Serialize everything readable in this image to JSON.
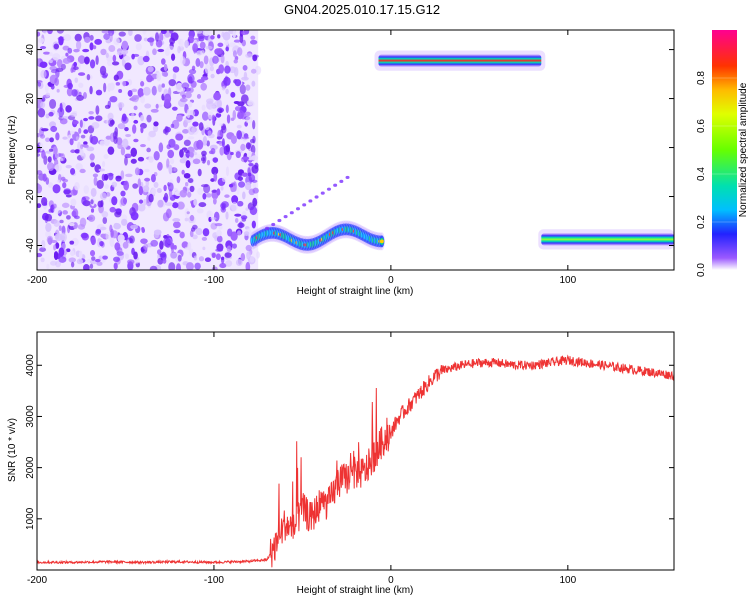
{
  "title": "GN04.2025.010.17.15.G12",
  "chart_data": [
    {
      "type": "heatmap",
      "xlabel": "Height of straight line (km)",
      "ylabel": "Frequency (Hz)",
      "xlim": [
        -200,
        160
      ],
      "ylim": [
        -50,
        48
      ],
      "x_ticks": [
        -200,
        -100,
        0,
        100
      ],
      "y_ticks": [
        -40,
        -20,
        0,
        20,
        40
      ],
      "x_tick_labels": [
        "-200",
        "-100",
        "0",
        "100"
      ],
      "y_tick_labels": [
        "-40",
        "-20",
        "0",
        "20",
        "40"
      ],
      "colorbar": {
        "label": "Normalized spectral amplitude",
        "range": [
          0,
          1
        ],
        "ticks": [
          0,
          0.2,
          0.4,
          0.6,
          0.8
        ],
        "tick_labels": [
          "0.0",
          "0.2",
          "0.4",
          "0.6",
          "0.8"
        ],
        "colormap": "rainbow"
      },
      "regions": [
        {
          "x": [
            -200,
            -75
          ],
          "y": [
            -50,
            48
          ],
          "amplitude": 0.1,
          "pattern": "scattered noise"
        },
        {
          "x": [
            -78,
            -5
          ],
          "y": [
            -42,
            -33
          ],
          "amplitude": 0.6,
          "pattern": "wavy band"
        },
        {
          "x": [
            -7,
            85
          ],
          "y": [
            33,
            38
          ],
          "amplitude": 0.95,
          "pattern": "horizontal band"
        },
        {
          "x": [
            85,
            160
          ],
          "y": [
            -40,
            -35
          ],
          "amplitude": 0.75,
          "pattern": "horizontal band"
        }
      ]
    },
    {
      "type": "line",
      "xlabel": "Height of straight line (km)",
      "ylabel": "SNR (10 * v/v)",
      "xlim": [
        -200,
        160
      ],
      "ylim": [
        0,
        4650
      ],
      "x_ticks": [
        -200,
        -100,
        0,
        100
      ],
      "y_ticks": [
        1000,
        2000,
        3000,
        4000
      ],
      "x_tick_labels": [
        "-200",
        "-100",
        "0",
        "100"
      ],
      "y_tick_labels": [
        "1000",
        "2000",
        "3000",
        "4000"
      ],
      "series": [
        {
          "color": "#ee3333",
          "points": [
            [
              -200,
              150
            ],
            [
              -180,
              150
            ],
            [
              -160,
              160
            ],
            [
              -140,
              150
            ],
            [
              -120,
              160
            ],
            [
              -100,
              150
            ],
            [
              -80,
              170
            ],
            [
              -70,
              200
            ],
            [
              -65,
              500
            ],
            [
              -60,
              900
            ],
            [
              -55,
              800
            ],
            [
              -50,
              1200
            ],
            [
              -45,
              1000
            ],
            [
              -40,
              1300
            ],
            [
              -35,
              1300
            ],
            [
              -30,
              1700
            ],
            [
              -25,
              1800
            ],
            [
              -20,
              1900
            ],
            [
              -15,
              1900
            ],
            [
              -10,
              2200
            ],
            [
              -5,
              2500
            ],
            [
              0,
              2700
            ],
            [
              5,
              3000
            ],
            [
              10,
              3200
            ],
            [
              15,
              3400
            ],
            [
              20,
              3600
            ],
            [
              25,
              3800
            ],
            [
              30,
              3900
            ],
            [
              40,
              4000
            ],
            [
              50,
              4050
            ],
            [
              60,
              4050
            ],
            [
              70,
              4000
            ],
            [
              80,
              4000
            ],
            [
              90,
              4050
            ],
            [
              100,
              4100
            ],
            [
              110,
              4050
            ],
            [
              120,
              4000
            ],
            [
              130,
              3950
            ],
            [
              140,
              3900
            ],
            [
              150,
              3850
            ],
            [
              160,
              3800
            ]
          ]
        }
      ]
    }
  ]
}
